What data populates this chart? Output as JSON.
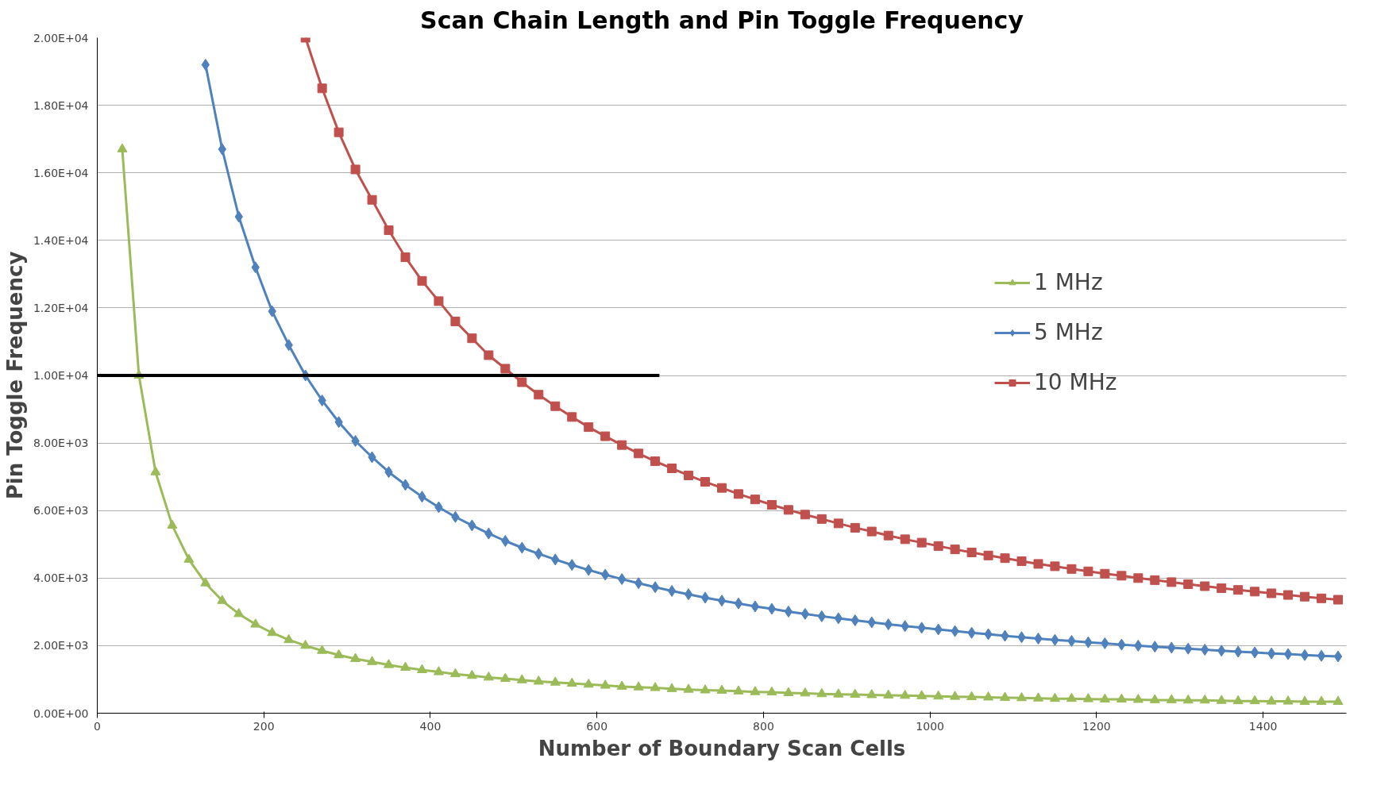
{
  "chart_data": {
    "type": "line",
    "title": "Scan Chain Length and Pin Toggle Frequency",
    "xlabel": "Number of Boundary Scan Cells",
    "ylabel": "Pin Toggle Frequency",
    "x": [
      30,
      50,
      70,
      90,
      110,
      130,
      150,
      170,
      190,
      210,
      230,
      250,
      270,
      290,
      310,
      330,
      350,
      370,
      390,
      410,
      430,
      450,
      470,
      490,
      510,
      530,
      550,
      570,
      590,
      610,
      630,
      650,
      670,
      690,
      710,
      730,
      750,
      770,
      790,
      810,
      830,
      850,
      870,
      890,
      910,
      930,
      950,
      970,
      990,
      1010,
      1030,
      1050,
      1070,
      1090,
      1110,
      1130,
      1150,
      1170,
      1190,
      1210,
      1230,
      1250,
      1270,
      1290,
      1310,
      1330,
      1350,
      1370,
      1390,
      1410,
      1430,
      1450,
      1470,
      1490
    ],
    "series": [
      {
        "name": "1 MHz",
        "color": "#9bbb59",
        "marker": "triangle",
        "values": [
          16700,
          10000,
          7140,
          5560,
          4550,
          3850,
          3330,
          2940,
          2630,
          2380,
          2170,
          2000,
          1850,
          1720,
          1610,
          1520,
          1430,
          1350,
          1280,
          1220,
          1160,
          1110,
          1060,
          1020,
          980,
          940,
          910,
          880,
          850,
          820,
          790,
          770,
          750,
          720,
          700,
          680,
          670,
          650,
          630,
          620,
          600,
          590,
          570,
          560,
          550,
          540,
          530,
          520,
          510,
          500,
          490,
          480,
          470,
          460,
          450,
          440,
          430,
          430,
          420,
          410,
          410,
          400,
          390,
          390,
          380,
          380,
          370,
          360,
          360,
          350,
          350,
          340,
          340,
          340
        ]
      },
      {
        "name": "5 MHz",
        "color": "#4f81bd",
        "marker": "diamond",
        "values": [
          null,
          null,
          null,
          null,
          null,
          19200,
          16700,
          14700,
          13200,
          11900,
          10900,
          10000,
          9260,
          8620,
          8060,
          7580,
          7140,
          6760,
          6410,
          6100,
          5810,
          5560,
          5320,
          5100,
          4900,
          4720,
          4550,
          4390,
          4240,
          4100,
          3970,
          3850,
          3730,
          3620,
          3520,
          3420,
          3330,
          3250,
          3160,
          3090,
          3010,
          2940,
          2870,
          2810,
          2750,
          2690,
          2630,
          2580,
          2530,
          2480,
          2430,
          2380,
          2340,
          2290,
          2250,
          2210,
          2170,
          2140,
          2100,
          2070,
          2030,
          2000,
          1970,
          1940,
          1910,
          1880,
          1850,
          1820,
          1800,
          1770,
          1750,
          1720,
          1700,
          1680
        ]
      },
      {
        "name": "10 MHz",
        "color": "#c0504d",
        "marker": "square",
        "values": [
          null,
          null,
          null,
          null,
          null,
          null,
          null,
          null,
          null,
          null,
          null,
          20000,
          18500,
          17200,
          16100,
          15200,
          14300,
          13500,
          12800,
          12200,
          11600,
          11100,
          10600,
          10200,
          9800,
          9430,
          9090,
          8770,
          8470,
          8200,
          7940,
          7690,
          7460,
          7250,
          7040,
          6850,
          6670,
          6490,
          6330,
          6170,
          6020,
          5880,
          5750,
          5620,
          5490,
          5380,
          5260,
          5150,
          5050,
          4950,
          4850,
          4760,
          4670,
          4590,
          4500,
          4420,
          4350,
          4270,
          4200,
          4130,
          4070,
          4000,
          3940,
          3880,
          3820,
          3760,
          3700,
          3650,
          3600,
          3550,
          3500,
          3450,
          3400,
          3360
        ]
      },
      {
        "color": "#000000",
        "marker": "none",
        "x": [
          0,
          675
        ],
        "values": [
          10000,
          10000
        ]
      }
    ],
    "xlim": [
      0,
      1500
    ],
    "xticks": [
      0,
      200,
      400,
      600,
      800,
      1000,
      1200,
      1400
    ],
    "ylim": [
      0,
      20000
    ],
    "yticks": [
      {
        "value": 0,
        "label": "0.00E+00"
      },
      {
        "value": 2000,
        "label": "2.00E+03"
      },
      {
        "value": 4000,
        "label": "4.00E+03"
      },
      {
        "value": 6000,
        "label": "6.00E+03"
      },
      {
        "value": 8000,
        "label": "8.00E+03"
      },
      {
        "value": 10000,
        "label": "1.00E+04"
      },
      {
        "value": 12000,
        "label": "1.20E+04"
      },
      {
        "value": 14000,
        "label": "1.40E+04"
      },
      {
        "value": 16000,
        "label": "1.60E+04"
      },
      {
        "value": 18000,
        "label": "1.80E+04"
      },
      {
        "value": 20000,
        "label": "2.00E+04"
      }
    ],
    "grid": "y",
    "legend": "right"
  }
}
